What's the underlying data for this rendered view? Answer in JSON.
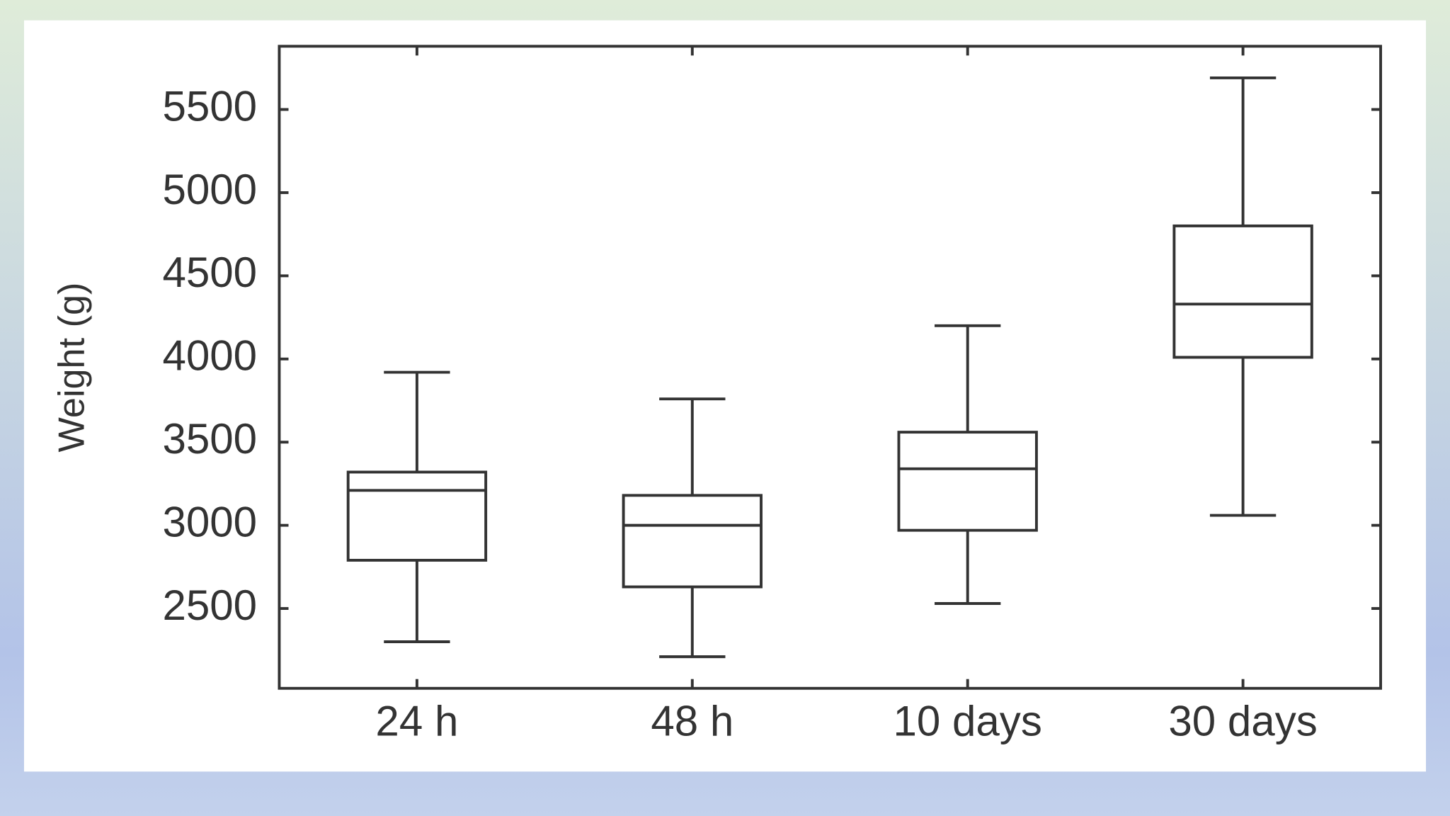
{
  "chart_data": {
    "type": "box",
    "y_label": "Weight (g)",
    "categories": [
      "24 h",
      "48 h",
      "10 days",
      "30 days"
    ],
    "boxes": [
      {
        "whislo": 2300,
        "q1": 2790,
        "med": 3210,
        "q3": 3320,
        "whishi": 3920
      },
      {
        "whislo": 2210,
        "q1": 2630,
        "med": 3000,
        "q3": 3180,
        "whishi": 3760
      },
      {
        "whislo": 2530,
        "q1": 2970,
        "med": 3340,
        "q3": 3560,
        "whishi": 4200
      },
      {
        "whislo": 3060,
        "q1": 4010,
        "med": 4330,
        "q3": 4800,
        "whishi": 5690
      }
    ],
    "color": "#333333",
    "ylim": [
      2020,
      5880
    ],
    "yticks": [
      2500,
      3000,
      3500,
      4000,
      4500,
      5000,
      5500
    ],
    "grid": false
  }
}
